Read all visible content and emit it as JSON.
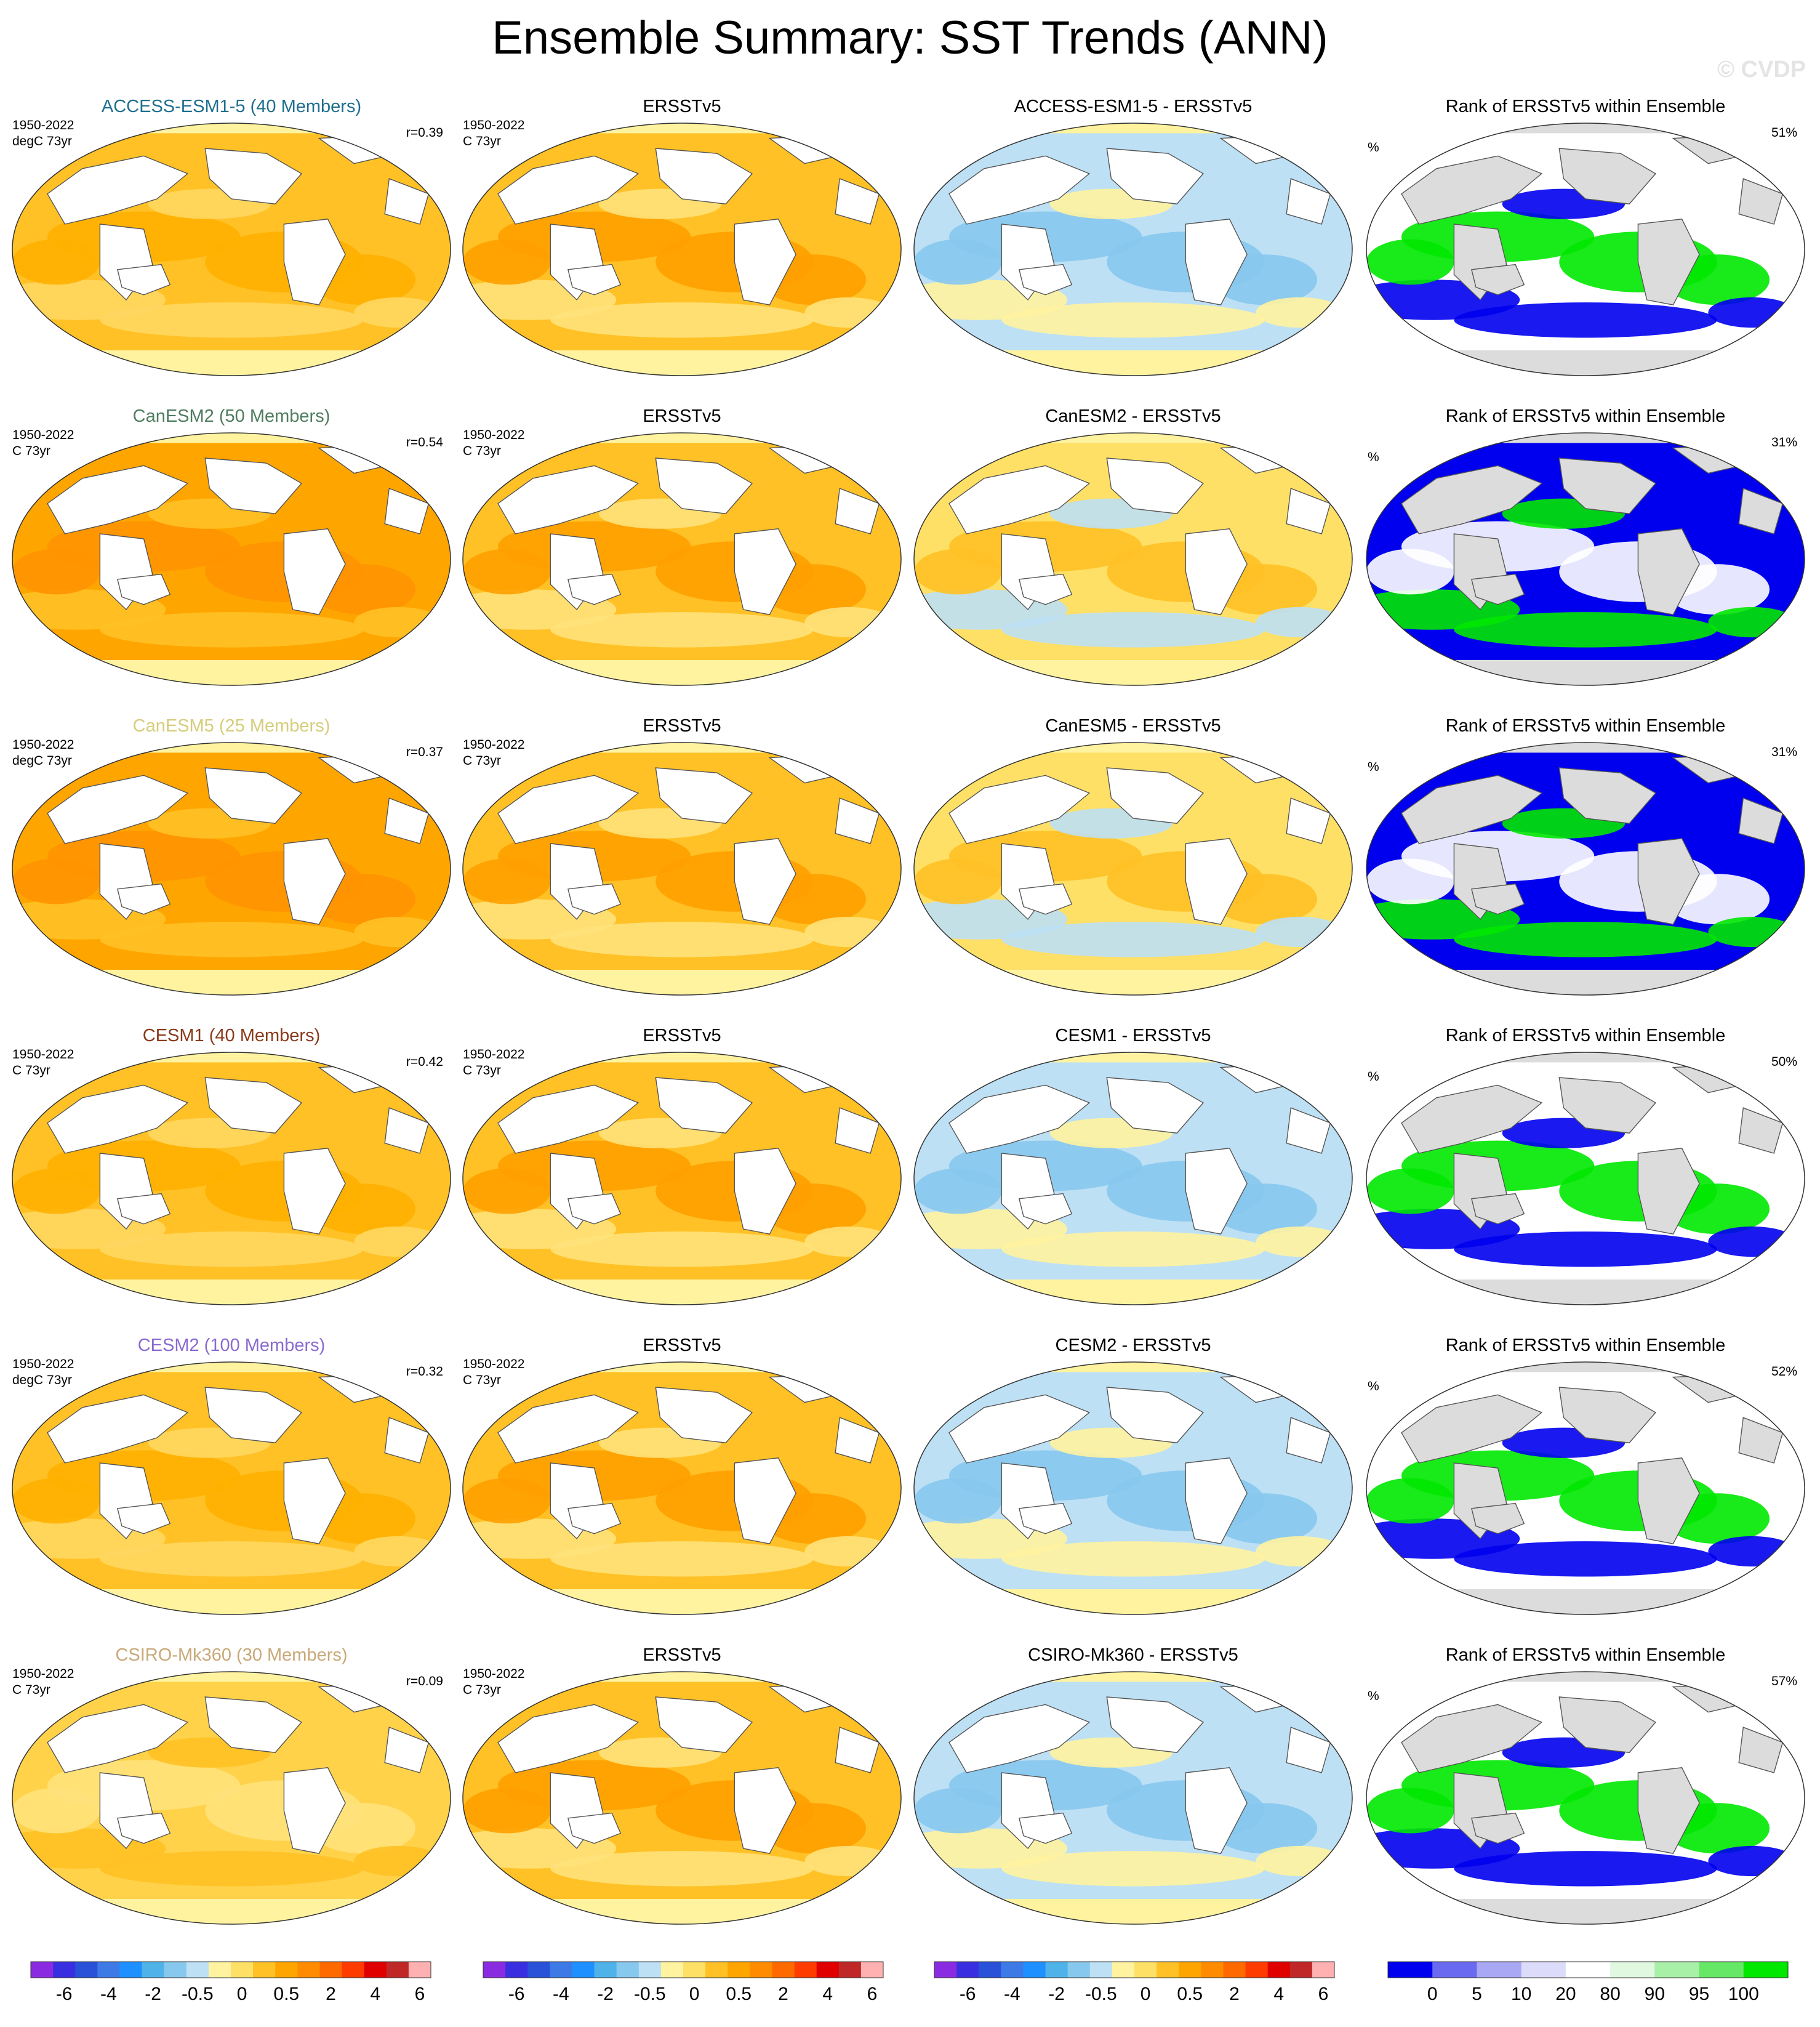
{
  "title": "Ensemble Summary: SST Trends (ANN)",
  "watermark": "© CVDP",
  "chart_data": {
    "type": "map-panel-grid",
    "projection": "robinson",
    "period": "1950-2022",
    "observation": "ERSSTv5",
    "rank_title": "Rank of ERSSTv5 within Ensemble",
    "rank_unit_label": "%",
    "rows": [
      {
        "model": "ACCESS-ESM1-5 (40 Members)",
        "model_color": "#1f6f8f",
        "diff_title": "ACCESS-ESM1-5 - ERSSTv5",
        "model_units": "degC 73yr",
        "obs_units": "C 73yr",
        "pattern_corr": "r=0.39",
        "rank_pct": "51%",
        "model_level": "medium",
        "diff_level": "cool",
        "rank_pattern": "mixed"
      },
      {
        "model": "CanESM2 (50 Members)",
        "model_color": "#4e7c5e",
        "diff_title": "CanESM2 - ERSSTv5",
        "model_units": "C 73yr",
        "obs_units": "C 73yr",
        "pattern_corr": "r=0.54",
        "rank_pct": "31%",
        "model_level": "strong",
        "diff_level": "warm",
        "rank_pattern": "low"
      },
      {
        "model": "CanESM5 (25 Members)",
        "model_color": "#d6cc7a",
        "diff_title": "CanESM5 - ERSSTv5",
        "model_units": "degC 73yr",
        "obs_units": "C 73yr",
        "pattern_corr": "r=0.37",
        "rank_pct": "31%",
        "model_level": "strong",
        "diff_level": "warm",
        "rank_pattern": "low"
      },
      {
        "model": "CESM1 (40 Members)",
        "model_color": "#8a3a1a",
        "diff_title": "CESM1 - ERSSTv5",
        "model_units": "C 73yr",
        "obs_units": "C 73yr",
        "pattern_corr": "r=0.42",
        "rank_pct": "50%",
        "model_level": "medium",
        "diff_level": "cool",
        "rank_pattern": "mixed"
      },
      {
        "model": "CESM2 (100 Members)",
        "model_color": "#8a6ad0",
        "diff_title": "CESM2 - ERSSTv5",
        "model_units": "degC 73yr",
        "obs_units": "C 73yr",
        "pattern_corr": "r=0.32",
        "rank_pct": "52%",
        "model_level": "medium",
        "diff_level": "cool",
        "rank_pattern": "mixed"
      },
      {
        "model": "CSIRO-Mk360 (30 Members)",
        "model_color": "#c9a878",
        "diff_title": "CSIRO-Mk360 - ERSSTv5",
        "model_units": "C 73yr",
        "obs_units": "C 73yr",
        "pattern_corr": "r=0.09",
        "rank_pct": "57%",
        "model_level": "weak",
        "diff_level": "cool",
        "rank_pattern": "high"
      }
    ],
    "trend_colorbar": {
      "labels": [
        "-6",
        "-4",
        "-2",
        "-0.5",
        "0",
        "0.5",
        "2",
        "4",
        "6"
      ],
      "colors": [
        "#8a2be2",
        "#3a2fe0",
        "#2a52d8",
        "#3d7ae6",
        "#1e90ff",
        "#4fb3ea",
        "#87c8ee",
        "#bde0f4",
        "#fff3a0",
        "#ffe066",
        "#ffc125",
        "#ffa500",
        "#ff8c00",
        "#ff6a00",
        "#ff3c00",
        "#e00000",
        "#c02828",
        "#ffb0b0"
      ]
    },
    "rank_colorbar": {
      "labels": [
        "0",
        "5",
        "10",
        "20",
        "80",
        "90",
        "95",
        "100"
      ],
      "colors": [
        "#0000ee",
        "#6a6af0",
        "#a8a8f4",
        "#dcdcfa",
        "#ffffff",
        "#e0f7e0",
        "#a8f0a8",
        "#66e866",
        "#00e800"
      ]
    }
  }
}
